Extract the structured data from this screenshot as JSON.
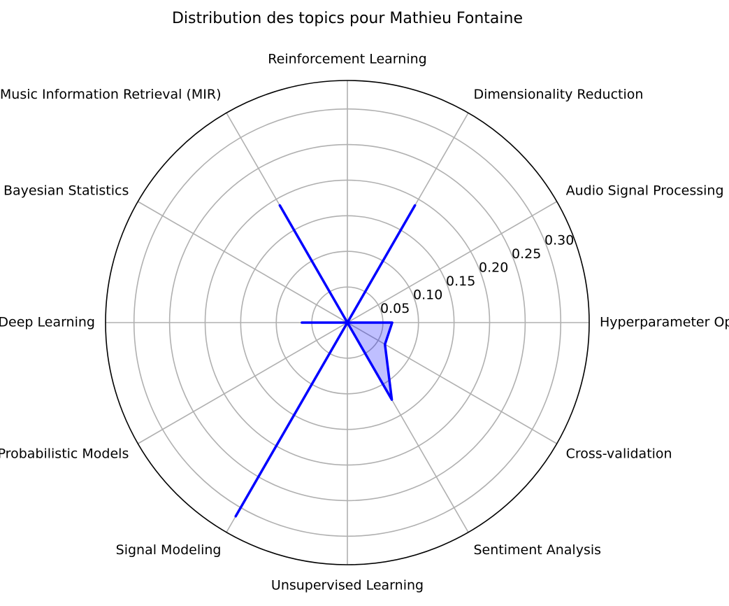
{
  "chart_data": {
    "type": "radar",
    "title": "Distribution des topics pour Mathieu Fontaine",
    "categories": [
      "Hyperparameter Optimization",
      "Audio Signal Processing",
      "Dimensionality Reduction",
      "Reinforcement Learning",
      "Machine Listening and Music Information Retrieval (MIR)",
      "Bayesian Statistics",
      "Deep Learning",
      "Probabilistic Models",
      "Signal Modeling",
      "Unsupervised Learning",
      "Sentiment Analysis",
      "Cross-validation"
    ],
    "series": [
      {
        "values": [
          0.063,
          0.0,
          0.19,
          0.0,
          0.19,
          0.0,
          0.064,
          0.0,
          0.314,
          0.0,
          0.125,
          0.061
        ],
        "color": "#0000ff",
        "fill_color": "#0000ff",
        "fill_opacity": 0.25
      }
    ],
    "rlim": [
      0,
      0.34
    ],
    "r_ticks": [
      0.05,
      0.1,
      0.15,
      0.2,
      0.25,
      0.3
    ],
    "r_tick_labels": [
      "0.05",
      "0.10",
      "0.15",
      "0.20",
      "0.25",
      "0.30"
    ],
    "start_angle_deg": 0,
    "direction": "counterclockwise",
    "grid": true,
    "colors": {
      "grid": "#b0b0b0",
      "frame": "#000000",
      "line": "#0000ff"
    }
  }
}
